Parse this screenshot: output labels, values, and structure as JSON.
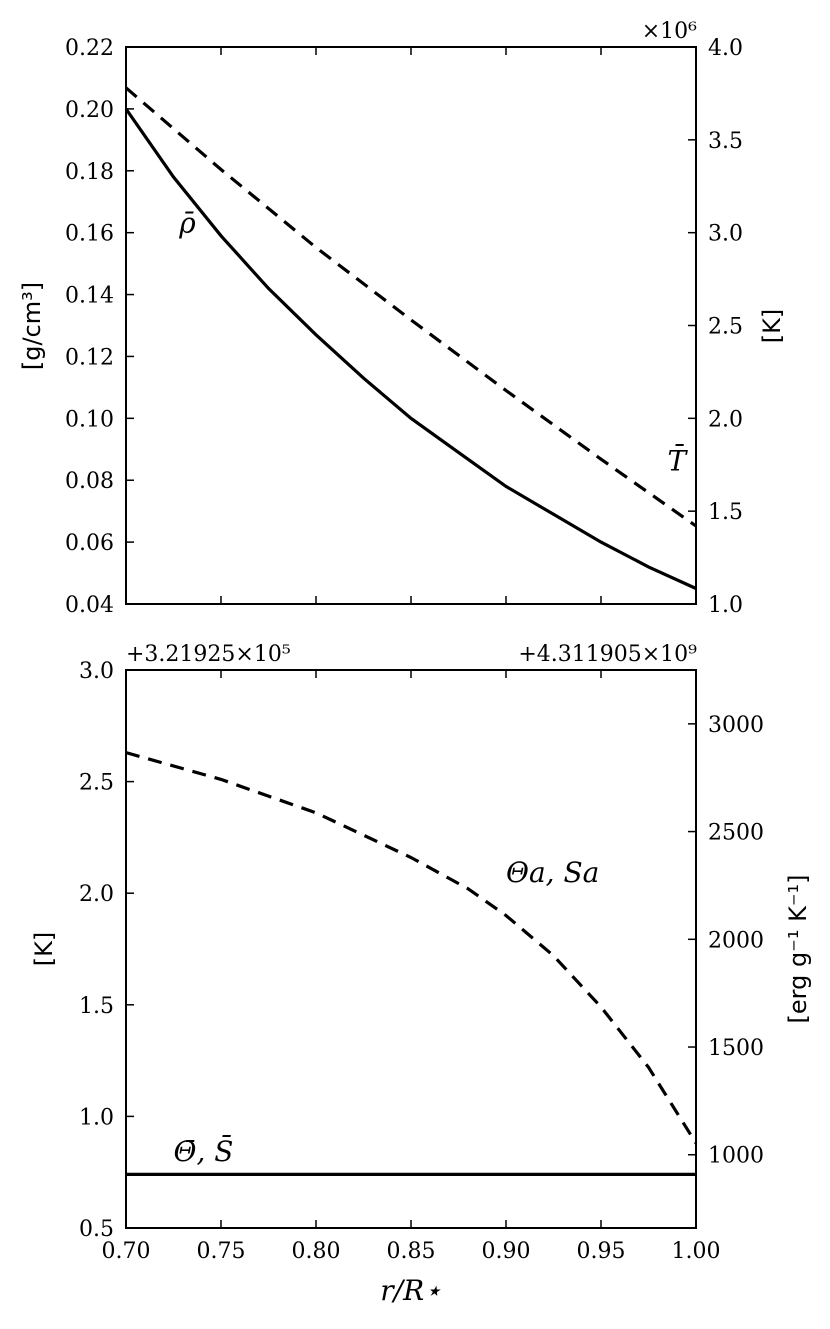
{
  "chart_data": [
    {
      "type": "line",
      "ylabel_left": "[g/cm³]",
      "ylabel_right": "[K]",
      "right_axis_multiplier": "×10⁶",
      "xlim": [
        0.7,
        1.0
      ],
      "ylim_left": [
        0.04,
        0.22
      ],
      "ylim_right": [
        1.0,
        4.0
      ],
      "x_ticks": [
        0.7,
        0.75,
        0.8,
        0.85,
        0.9,
        0.95,
        1.0
      ],
      "y_ticks_left": [
        "0.04",
        "0.06",
        "0.08",
        "0.10",
        "0.12",
        "0.14",
        "0.16",
        "0.18",
        "0.20",
        "0.22"
      ],
      "y_ticks_right": [
        "1.0",
        "1.5",
        "2.0",
        "2.5",
        "3.0",
        "3.5",
        "4.0"
      ],
      "series": [
        {
          "name": "ρ̄",
          "axis": "left",
          "style": "solid",
          "x": [
            0.7,
            0.725,
            0.75,
            0.775,
            0.8,
            0.825,
            0.85,
            0.875,
            0.9,
            0.925,
            0.95,
            0.975,
            1.0
          ],
          "y": [
            0.2,
            0.178,
            0.159,
            0.142,
            0.127,
            0.113,
            0.1,
            0.089,
            0.078,
            0.069,
            0.06,
            0.052,
            0.045
          ]
        },
        {
          "name": "T̄",
          "axis": "right",
          "style": "dashed",
          "x": [
            0.7,
            0.75,
            0.8,
            0.85,
            0.9,
            0.95,
            1.0
          ],
          "y": [
            3.78,
            3.34,
            2.92,
            2.53,
            2.15,
            1.78,
            1.42
          ]
        }
      ],
      "annotations": [
        {
          "text": "ρ̄",
          "x": 0.728,
          "y": 0.16
        },
        {
          "text": "T̄",
          "x": 0.985,
          "y": 1.72
        }
      ]
    },
    {
      "type": "line",
      "ylabel_left": "[K]",
      "ylabel_right": "[erg g⁻¹ K⁻¹]",
      "xlabel": "r/R⋆",
      "left_axis_offset": "+3.21925×10⁵",
      "right_axis_offset": "+4.311905×10⁹",
      "xlim": [
        0.7,
        1.0
      ],
      "ylim_left": [
        0.5,
        3.0
      ],
      "ylim_right": [
        660,
        3250
      ],
      "x_ticks": [
        "0.70",
        "0.75",
        "0.80",
        "0.85",
        "0.90",
        "0.95",
        "1.00"
      ],
      "y_ticks_left": [
        "0.5",
        "1.0",
        "1.5",
        "2.0",
        "2.5",
        "3.0"
      ],
      "y_ticks_right": [
        "1000",
        "1500",
        "2000",
        "2500",
        "3000"
      ],
      "series": [
        {
          "name": "Θ̄, S̄",
          "axis": "left",
          "style": "solid",
          "x": [
            0.7,
            1.0
          ],
          "y": [
            0.74,
            0.74
          ]
        },
        {
          "name": "Θa, Sa",
          "axis": "left",
          "style": "dashed",
          "x": [
            0.7,
            0.75,
            0.8,
            0.85,
            0.88,
            0.9,
            0.925,
            0.95,
            0.975,
            1.0
          ],
          "y": [
            2.63,
            2.51,
            2.36,
            2.16,
            2.02,
            1.9,
            1.72,
            1.49,
            1.22,
            0.88
          ]
        }
      ],
      "annotations": [
        {
          "text": "Θa, Sa",
          "x": 0.9,
          "y": 2.05
        },
        {
          "text": "Θ̄, S̄",
          "x": 0.725,
          "y": 0.8
        }
      ]
    }
  ]
}
